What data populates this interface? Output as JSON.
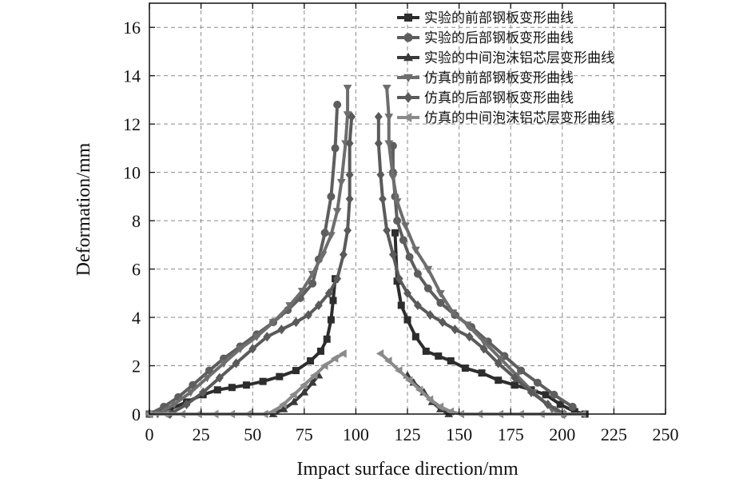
{
  "chart_data": {
    "type": "line",
    "title": "",
    "xlabel": "Impact surface direction/mm",
    "ylabel": "Deformation/mm",
    "xlim": [
      0,
      250
    ],
    "ylim": [
      0,
      17
    ],
    "xticks": [
      0,
      25,
      50,
      75,
      100,
      125,
      150,
      175,
      200,
      225,
      250
    ],
    "yticks": [
      0,
      2,
      4,
      6,
      8,
      10,
      12,
      14,
      16
    ],
    "grid": true,
    "legend_position": "top-right",
    "colors": [
      "#2d2d2d",
      "#5e5e5e",
      "#3a3a3a",
      "#6e6e6e",
      "#5a5a5a",
      "#8a8a8a"
    ],
    "series": [
      {
        "name": "实验的前部钢板变形曲线",
        "marker": "square",
        "segments": [
          [
            [
              0,
              0
            ],
            [
              10,
              0.2
            ],
            [
              18,
              0.5
            ],
            [
              26,
              0.8
            ],
            [
              33,
              1.0
            ],
            [
              40,
              1.1
            ],
            [
              47,
              1.2
            ],
            [
              55,
              1.35
            ],
            [
              63,
              1.55
            ],
            [
              71,
              1.8
            ],
            [
              78,
              2.2
            ],
            [
              83,
              2.6
            ],
            [
              86,
              3.1
            ],
            [
              88,
              3.9
            ],
            [
              89,
              4.7
            ],
            [
              90,
              5.6
            ]
          ],
          [
            [
              119,
              7.5
            ],
            [
              120,
              5.5
            ],
            [
              122,
              4.5
            ],
            [
              125,
              3.9
            ],
            [
              129,
              3.2
            ],
            [
              134,
              2.6
            ],
            [
              140,
              2.4
            ],
            [
              146,
              2.2
            ],
            [
              153,
              1.9
            ],
            [
              161,
              1.7
            ],
            [
              169,
              1.4
            ],
            [
              177,
              1.2
            ],
            [
              185,
              1.0
            ],
            [
              192,
              0.8
            ],
            [
              199,
              0.4
            ],
            [
              206,
              0.1
            ],
            [
              211,
              0
            ]
          ]
        ]
      },
      {
        "name": "实验的后部钢板变形曲线",
        "marker": "circle",
        "segments": [
          [
            [
              0,
              0
            ],
            [
              7,
              0.3
            ],
            [
              14,
              0.7
            ],
            [
              21,
              1.2
            ],
            [
              29,
              1.8
            ],
            [
              36,
              2.3
            ],
            [
              44,
              2.8
            ],
            [
              52,
              3.3
            ],
            [
              60,
              3.8
            ],
            [
              67,
              4.3
            ],
            [
              73,
              4.8
            ],
            [
              79,
              5.4
            ],
            [
              82,
              6.4
            ],
            [
              85,
              7.5
            ],
            [
              88,
              9.0
            ],
            [
              90,
              11.0
            ],
            [
              91,
              12.8
            ]
          ],
          [
            [
              118,
              11.1
            ],
            [
              118,
              10.0
            ],
            [
              119,
              9.0
            ],
            [
              120,
              8.0
            ],
            [
              123,
              7.2
            ],
            [
              126,
              6.5
            ],
            [
              130,
              5.8
            ],
            [
              135,
              5.2
            ],
            [
              141,
              4.6
            ],
            [
              148,
              4.1
            ],
            [
              156,
              3.6
            ],
            [
              164,
              3.0
            ],
            [
              172,
              2.4
            ],
            [
              180,
              1.8
            ],
            [
              188,
              1.3
            ],
            [
              196,
              0.8
            ],
            [
              205,
              0.3
            ]
          ]
        ]
      },
      {
        "name": "实验的中间泡沫铝芯层变形曲线",
        "marker": "triangle-up",
        "segments": [
          [
            [
              60,
              0
            ],
            [
              65,
              0.2
            ],
            [
              70,
              0.5
            ],
            [
              75,
              0.9
            ],
            [
              79,
              1.3
            ],
            [
              82,
              1.6
            ]
          ],
          [
            [
              125,
              1.6
            ],
            [
              128,
              1.3
            ],
            [
              133,
              0.9
            ],
            [
              137,
              0.5
            ],
            [
              141,
              0.2
            ],
            [
              145,
              0
            ]
          ]
        ]
      },
      {
        "name": "仿真的前部钢板变形曲线",
        "marker": "triangle-down",
        "segments": [
          [
            [
              4,
              0
            ],
            [
              12,
              0.4
            ],
            [
              20,
              0.9
            ],
            [
              28,
              1.5
            ],
            [
              36,
              2.1
            ],
            [
              44,
              2.7
            ],
            [
              52,
              3.2
            ],
            [
              60,
              3.8
            ],
            [
              68,
              4.5
            ],
            [
              74,
              5.1
            ],
            [
              79,
              5.8
            ],
            [
              84,
              6.6
            ],
            [
              88,
              7.4
            ],
            [
              91,
              8.4
            ],
            [
              93,
              9.6
            ],
            [
              95,
              11.2
            ],
            [
              96,
              12.4
            ],
            [
              96,
              13.5
            ]
          ],
          [
            [
              115,
              13.5
            ],
            [
              116,
              12.3
            ],
            [
              116,
              11.2
            ],
            [
              118,
              9.8
            ],
            [
              120,
              8.8
            ],
            [
              124,
              7.8
            ],
            [
              129,
              6.8
            ],
            [
              135,
              6.0
            ],
            [
              141,
              5.0
            ],
            [
              147,
              4.2
            ],
            [
              154,
              3.7
            ],
            [
              162,
              3.0
            ],
            [
              170,
              2.3
            ],
            [
              178,
              1.6
            ],
            [
              186,
              0.9
            ],
            [
              195,
              0.2
            ],
            [
              200,
              0
            ]
          ]
        ]
      },
      {
        "name": "仿真的后部钢板变形曲线",
        "marker": "diamond",
        "segments": [
          [
            [
              10,
              0
            ],
            [
              18,
              0.4
            ],
            [
              26,
              0.9
            ],
            [
              34,
              1.5
            ],
            [
              42,
              2.1
            ],
            [
              50,
              2.7
            ],
            [
              57,
              3.2
            ],
            [
              64,
              3.5
            ],
            [
              71,
              3.8
            ],
            [
              77,
              4.1
            ],
            [
              82,
              4.5
            ],
            [
              87,
              5.0
            ],
            [
              91,
              5.6
            ],
            [
              94,
              6.6
            ],
            [
              96,
              7.6
            ],
            [
              97,
              8.9
            ],
            [
              97,
              9.9
            ],
            [
              97,
              11.2
            ],
            [
              98,
              12.3
            ]
          ],
          [
            [
              111,
              12.3
            ],
            [
              111,
              11.2
            ],
            [
              112,
              9.9
            ],
            [
              113,
              8.9
            ],
            [
              115,
              7.6
            ],
            [
              118,
              6.6
            ],
            [
              121,
              5.6
            ],
            [
              125,
              5.0
            ],
            [
              130,
              4.5
            ],
            [
              136,
              4.1
            ],
            [
              142,
              3.8
            ],
            [
              148,
              3.5
            ],
            [
              155,
              3.2
            ],
            [
              162,
              2.7
            ],
            [
              169,
              2.1
            ],
            [
              177,
              1.5
            ],
            [
              185,
              0.9
            ],
            [
              193,
              0.4
            ],
            [
              201,
              0
            ]
          ]
        ]
      },
      {
        "name": "仿真的中间泡沫铝芯层变形曲线",
        "marker": "triangle-left",
        "segments": [
          [
            [
              0,
              0
            ],
            [
              8,
              0
            ],
            [
              16,
              0
            ],
            [
              24,
              0
            ],
            [
              32,
              0
            ],
            [
              40,
              0
            ],
            [
              48,
              0
            ],
            [
              56,
              0
            ],
            [
              60,
              0.1
            ],
            [
              65,
              0.4
            ],
            [
              70,
              0.8
            ],
            [
              75,
              1.2
            ],
            [
              80,
              1.6
            ],
            [
              85,
              2.0
            ],
            [
              90,
              2.3
            ],
            [
              94,
              2.5
            ]
          ],
          [
            [
              112,
              2.5
            ],
            [
              116,
              2.2
            ],
            [
              121,
              1.8
            ],
            [
              126,
              1.4
            ],
            [
              131,
              1.0
            ],
            [
              136,
              0.6
            ],
            [
              141,
              0.3
            ],
            [
              146,
              0.1
            ],
            [
              151,
              0
            ],
            [
              160,
              0
            ],
            [
              170,
              0
            ],
            [
              180,
              0
            ],
            [
              190,
              0
            ],
            [
              200,
              0
            ],
            [
              210,
              0
            ]
          ]
        ]
      }
    ]
  }
}
